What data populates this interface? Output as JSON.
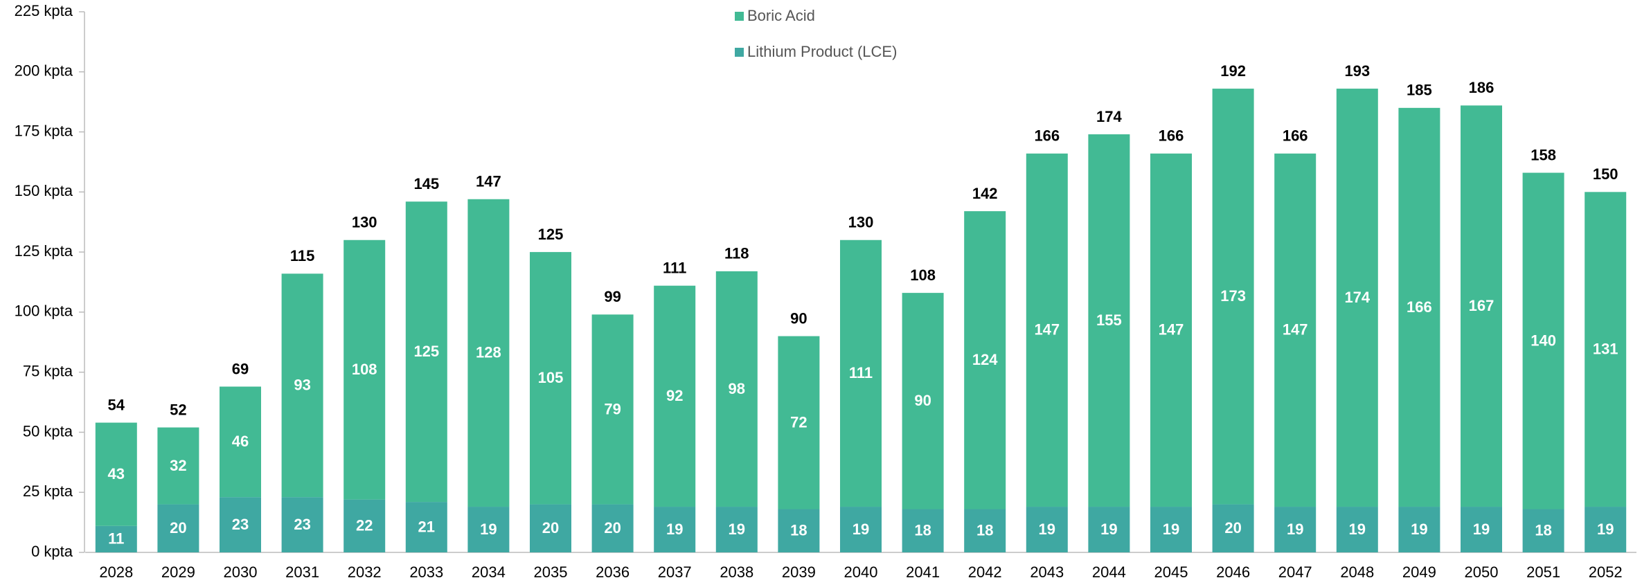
{
  "chart_data": {
    "type": "stacked_bar",
    "categories": [
      "2028",
      "2029",
      "2030",
      "2031",
      "2032",
      "2033",
      "2034",
      "2035",
      "2036",
      "2037",
      "2038",
      "2039",
      "2040",
      "2041",
      "2042",
      "2043",
      "2044",
      "2045",
      "2046",
      "2047",
      "2048",
      "2049",
      "2050",
      "2051",
      "2052"
    ],
    "series": [
      {
        "name": "Lithium Product (LCE)",
        "color": "#3fa8a2",
        "values": [
          11,
          20,
          23,
          23,
          22,
          21,
          19,
          20,
          20,
          19,
          19,
          18,
          19,
          18,
          18,
          19,
          19,
          19,
          20,
          19,
          19,
          19,
          19,
          18,
          19
        ]
      },
      {
        "name": "Boric Acid",
        "color": "#42ba94",
        "values": [
          43,
          32,
          46,
          93,
          108,
          125,
          128,
          105,
          79,
          92,
          98,
          72,
          111,
          90,
          124,
          147,
          155,
          147,
          173,
          147,
          174,
          166,
          167,
          140,
          131
        ]
      }
    ],
    "totals": [
      54,
      52,
      69,
      115,
      130,
      145,
      147,
      125,
      99,
      111,
      118,
      90,
      130,
      108,
      142,
      166,
      174,
      166,
      192,
      166,
      193,
      185,
      186,
      158,
      150
    ],
    "ylim": [
      0,
      225
    ],
    "yticks": [
      {
        "value": 0,
        "label": "0 kpta"
      },
      {
        "value": 25,
        "label": "25 kpta"
      },
      {
        "value": 50,
        "label": "50 kpta"
      },
      {
        "value": 75,
        "label": "75 kpta"
      },
      {
        "value": 100,
        "label": "100 kpta"
      },
      {
        "value": 125,
        "label": "125 kpta"
      },
      {
        "value": 150,
        "label": "150 kpta"
      },
      {
        "value": 175,
        "label": "175 kpta"
      },
      {
        "value": 200,
        "label": "200 kpta"
      },
      {
        "value": 225,
        "label": "225 kpta"
      }
    ],
    "legend": "top"
  }
}
